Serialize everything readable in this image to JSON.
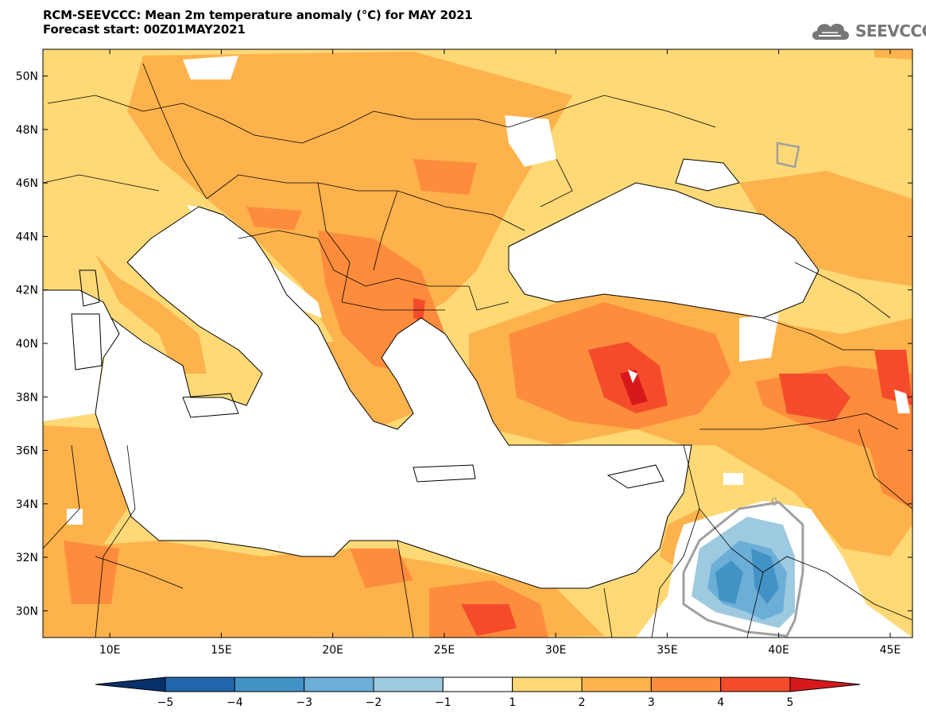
{
  "header": {
    "title_line1": "RCM-SEEVCCC: Mean 2m temperature anomaly (°C) for MAY 2021",
    "title_line2": "Forecast start: 00Z01MAY2021",
    "logo_text": "SEEVCCC"
  },
  "map": {
    "lon_range": [
      7,
      46
    ],
    "lat_range": [
      29,
      51
    ],
    "lon_ticks": [
      "10E",
      "15E",
      "20E",
      "25E",
      "30E",
      "35E",
      "40E",
      "45E"
    ],
    "lat_ticks": [
      "30N",
      "32N",
      "34N",
      "36N",
      "38N",
      "40N",
      "42N",
      "44N",
      "46N",
      "48N",
      "50N"
    ],
    "contour_label": "0"
  },
  "colorbar": {
    "labels": [
      "−5",
      "−4",
      "−3",
      "−2",
      "−1",
      "1",
      "2",
      "3",
      "4",
      "5"
    ],
    "colors": [
      "#08306b",
      "#2166ac",
      "#4392c6",
      "#6baed6",
      "#9ecae1",
      "#ffffff",
      "#fed976",
      "#fdb24c",
      "#fd8c3c",
      "#f44c2a",
      "#d7191c"
    ]
  },
  "colors": {
    "land_1_2": "#fed976",
    "land_2_3": "#fdb24c",
    "land_3_4": "#fd8c3c",
    "land_4_5": "#f44c2a",
    "land_gt5": "#d7191c",
    "sea": "#ffffff",
    "cold_1": "#9ecae1",
    "cold_2": "#6baed6",
    "cold_3": "#4392c6",
    "contour_zero": "#a0a0a0",
    "logo": "#777777"
  }
}
